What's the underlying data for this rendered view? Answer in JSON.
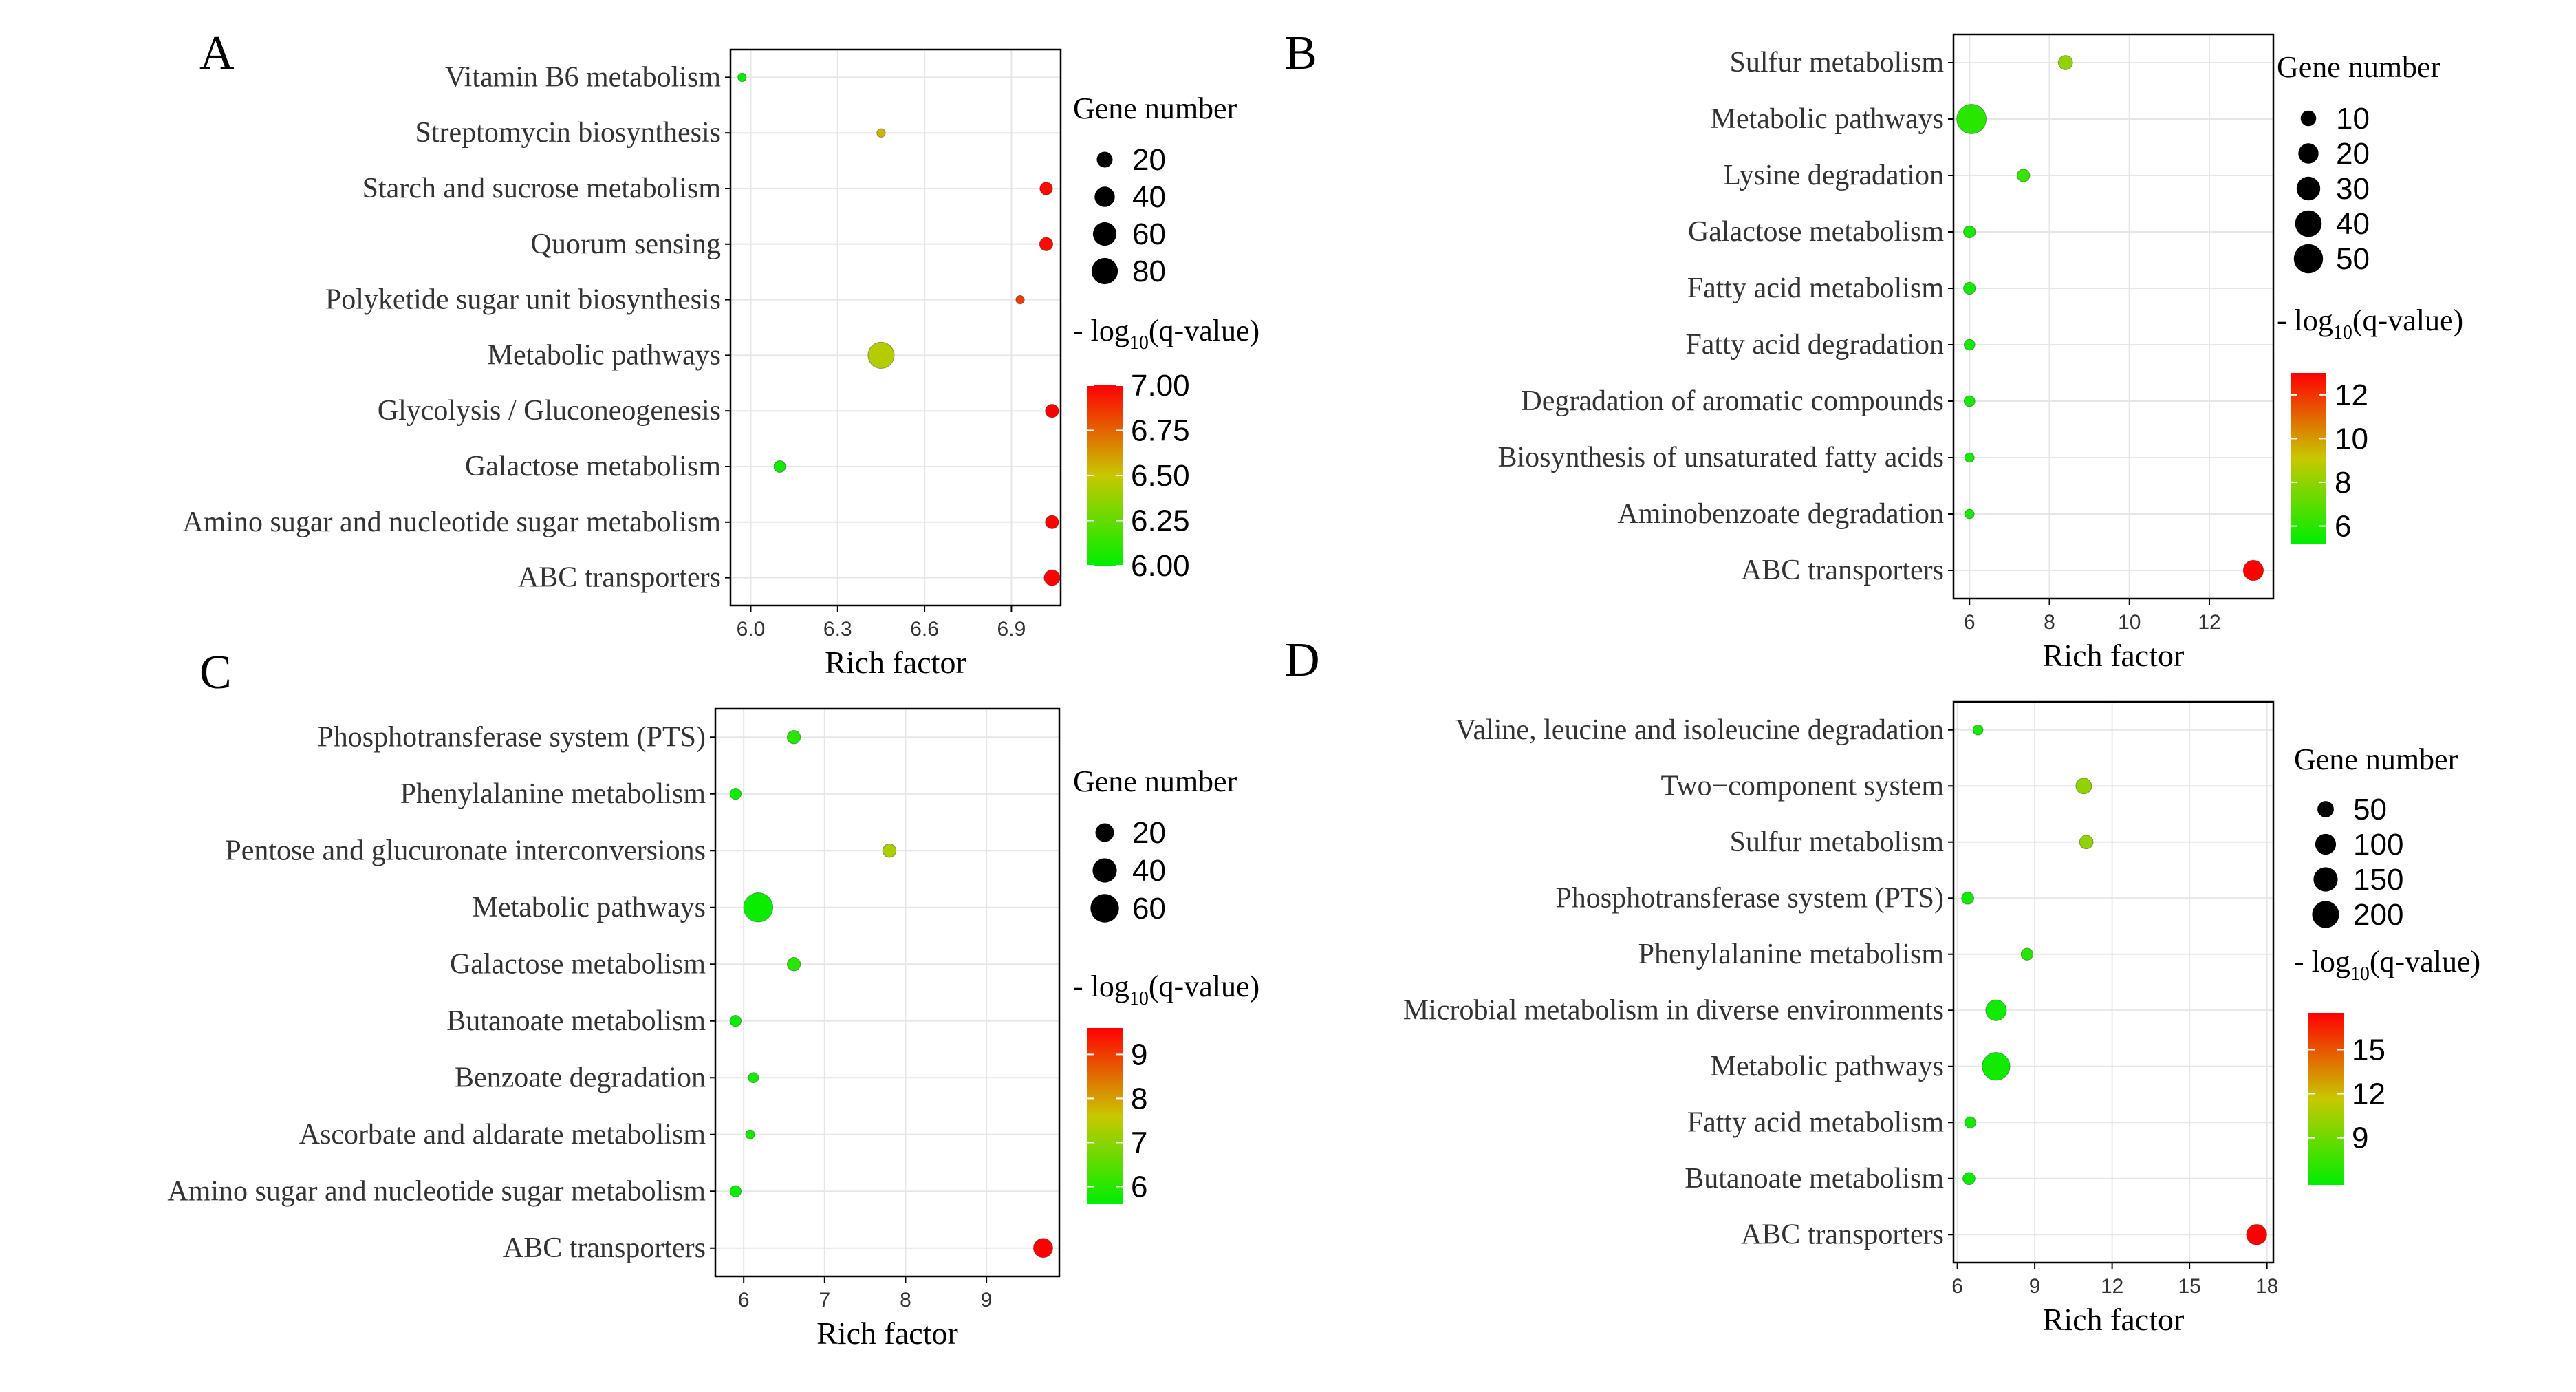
{
  "colors": {
    "low": "#00ee00",
    "mid": "#c8c800",
    "high": "#ff0000",
    "grid": "#e6e6e6",
    "axis": "#000000",
    "text": "#333333"
  },
  "chart_data": [
    {
      "type": "scatter",
      "panel": "A",
      "xlabel": "Rich factor",
      "xlim": [
        5.93,
        7.07
      ],
      "x_ticks": [
        6.0,
        6.3,
        6.6,
        6.9
      ],
      "x_tick_labels": [
        "6.0",
        "6.3",
        "6.6",
        "6.9"
      ],
      "size_legend_title": "Gene number",
      "size_legend": [
        20,
        40,
        60,
        80
      ],
      "size_range": [
        2,
        90
      ],
      "color_legend_title": "- log10(q-value)",
      "color_range": [
        6.0,
        7.0
      ],
      "color_legend_ticks": [
        "7.00",
        "6.75",
        "6.50",
        "6.25",
        "6.00"
      ],
      "points": [
        {
          "pathway": "Vitamin B6 metabolism",
          "rich_factor": 5.97,
          "gene_number": 3,
          "q": 6.0
        },
        {
          "pathway": "Streptomycin biosynthesis",
          "rich_factor": 6.45,
          "gene_number": 3,
          "q": 6.55
        },
        {
          "pathway": "Starch and sucrose metabolism",
          "rich_factor": 7.02,
          "gene_number": 10,
          "q": 6.97
        },
        {
          "pathway": "Quorum sensing",
          "rich_factor": 7.02,
          "gene_number": 12,
          "q": 6.97
        },
        {
          "pathway": "Polyketide sugar unit biosynthesis",
          "rich_factor": 6.93,
          "gene_number": 3,
          "q": 6.85
        },
        {
          "pathway": "Metabolic pathways",
          "rich_factor": 6.45,
          "gene_number": 80,
          "q": 6.45
        },
        {
          "pathway": "Glycolysis / Gluconeogenesis",
          "rich_factor": 7.04,
          "gene_number": 12,
          "q": 7.0
        },
        {
          "pathway": "Galactose metabolism",
          "rich_factor": 6.1,
          "gene_number": 8,
          "q": 6.05
        },
        {
          "pathway": "Amino sugar and nucleotide sugar metabolism",
          "rich_factor": 7.04,
          "gene_number": 12,
          "q": 7.0
        },
        {
          "pathway": "ABC transporters",
          "rich_factor": 7.04,
          "gene_number": 20,
          "q": 7.0
        }
      ]
    },
    {
      "type": "scatter",
      "panel": "B",
      "xlabel": "Rich factor",
      "xlim": [
        5.6,
        13.6
      ],
      "x_ticks": [
        6,
        8,
        10,
        12
      ],
      "x_tick_labels": [
        "6",
        "8",
        "10",
        "12"
      ],
      "size_legend_title": "Gene number",
      "size_legend": [
        10,
        20,
        30,
        40,
        50
      ],
      "size_range": [
        2,
        55
      ],
      "color_legend_title": "- log10(q-value)",
      "color_range": [
        5.2,
        13
      ],
      "color_legend_ticks": [
        "12",
        "10",
        "8",
        "6"
      ],
      "points": [
        {
          "pathway": "Sulfur metabolism",
          "rich_factor": 8.4,
          "gene_number": 8,
          "q": 8.0
        },
        {
          "pathway": "Metabolic pathways",
          "rich_factor": 6.05,
          "gene_number": 52,
          "q": 6.0
        },
        {
          "pathway": "Lysine degradation",
          "rich_factor": 7.35,
          "gene_number": 6,
          "q": 6.3
        },
        {
          "pathway": "Galactose metabolism",
          "rich_factor": 6.0,
          "gene_number": 5,
          "q": 5.6
        },
        {
          "pathway": "Fatty acid metabolism",
          "rich_factor": 6.0,
          "gene_number": 5,
          "q": 5.6
        },
        {
          "pathway": "Fatty acid degradation",
          "rich_factor": 6.0,
          "gene_number": 4,
          "q": 5.6
        },
        {
          "pathway": "Degradation of aromatic compounds",
          "rich_factor": 6.0,
          "gene_number": 4,
          "q": 5.6
        },
        {
          "pathway": "Biosynthesis of unsaturated fatty acids",
          "rich_factor": 6.0,
          "gene_number": 3,
          "q": 5.6
        },
        {
          "pathway": "Aminobenzoate degradation",
          "rich_factor": 6.0,
          "gene_number": 3,
          "q": 5.6
        },
        {
          "pathway": "ABC transporters",
          "rich_factor": 13.1,
          "gene_number": 20,
          "q": 13.0
        }
      ]
    },
    {
      "type": "scatter",
      "panel": "C",
      "xlabel": "Rich factor",
      "xlim": [
        5.65,
        9.9
      ],
      "x_ticks": [
        6,
        7,
        8,
        9
      ],
      "x_tick_labels": [
        "6",
        "7",
        "8",
        "9"
      ],
      "size_legend_title": "Gene number",
      "size_legend": [
        20,
        40,
        60
      ],
      "size_range": [
        2,
        70
      ],
      "color_legend_title": "- log10(q-value)",
      "color_range": [
        5.6,
        9.6
      ],
      "color_legend_ticks": [
        "9",
        "8",
        "7",
        "6"
      ],
      "points": [
        {
          "pathway": "Phosphotransferase system (PTS)",
          "rich_factor": 6.62,
          "gene_number": 8,
          "q": 6.0
        },
        {
          "pathway": "Phenylalanine metabolism",
          "rich_factor": 5.9,
          "gene_number": 5,
          "q": 5.7
        },
        {
          "pathway": "Pentose and glucuronate interconversions",
          "rich_factor": 7.8,
          "gene_number": 8,
          "q": 7.3
        },
        {
          "pathway": "Metabolic pathways",
          "rich_factor": 6.18,
          "gene_number": 65,
          "q": 5.7
        },
        {
          "pathway": "Galactose metabolism",
          "rich_factor": 6.62,
          "gene_number": 8,
          "q": 6.0
        },
        {
          "pathway": "Butanoate metabolism",
          "rich_factor": 5.9,
          "gene_number": 5,
          "q": 5.7
        },
        {
          "pathway": "Benzoate degradation",
          "rich_factor": 6.12,
          "gene_number": 4,
          "q": 5.8
        },
        {
          "pathway": "Ascorbate and aldarate metabolism",
          "rich_factor": 6.08,
          "gene_number": 3,
          "q": 5.8
        },
        {
          "pathway": "Amino sugar and nucleotide sugar metabolism",
          "rich_factor": 5.9,
          "gene_number": 5,
          "q": 5.7
        },
        {
          "pathway": "ABC transporters",
          "rich_factor": 9.7,
          "gene_number": 22,
          "q": 9.6
        }
      ]
    },
    {
      "type": "scatter",
      "panel": "D",
      "xlabel": "Rich factor",
      "xlim": [
        5.85,
        18.25
      ],
      "x_ticks": [
        6,
        9,
        12,
        15,
        18
      ],
      "x_tick_labels": [
        "6",
        "9",
        "12",
        "15",
        "18"
      ],
      "size_legend_title": "Gene number",
      "size_legend": [
        50,
        100,
        150,
        200
      ],
      "size_range": [
        3,
        210
      ],
      "color_legend_title": "- log10(q-value)",
      "color_range": [
        5.8,
        17.5
      ],
      "color_legend_ticks": [
        "15",
        "12",
        "9"
      ],
      "points": [
        {
          "pathway": "Valine, leucine and isoleucine degradation",
          "rich_factor": 6.8,
          "gene_number": 10,
          "q": 6.5
        },
        {
          "pathway": "Two−component system",
          "rich_factor": 10.9,
          "gene_number": 45,
          "q": 10.0
        },
        {
          "pathway": "Sulfur metabolism",
          "rich_factor": 11.0,
          "gene_number": 28,
          "q": 10.0
        },
        {
          "pathway": "Phosphotransferase system (PTS)",
          "rich_factor": 6.4,
          "gene_number": 20,
          "q": 6.2
        },
        {
          "pathway": "Phenylalanine metabolism",
          "rich_factor": 8.7,
          "gene_number": 18,
          "q": 7.0
        },
        {
          "pathway": "Microbial metabolism in diverse environments",
          "rich_factor": 7.5,
          "gene_number": 100,
          "q": 6.3
        },
        {
          "pathway": "Metabolic pathways",
          "rich_factor": 7.5,
          "gene_number": 215,
          "q": 6.3
        },
        {
          "pathway": "Fatty acid metabolism",
          "rich_factor": 6.5,
          "gene_number": 15,
          "q": 6.2
        },
        {
          "pathway": "Butanoate metabolism",
          "rich_factor": 6.45,
          "gene_number": 20,
          "q": 6.2
        },
        {
          "pathway": "ABC transporters",
          "rich_factor": 17.6,
          "gene_number": 95,
          "q": 17.5
        }
      ]
    }
  ]
}
